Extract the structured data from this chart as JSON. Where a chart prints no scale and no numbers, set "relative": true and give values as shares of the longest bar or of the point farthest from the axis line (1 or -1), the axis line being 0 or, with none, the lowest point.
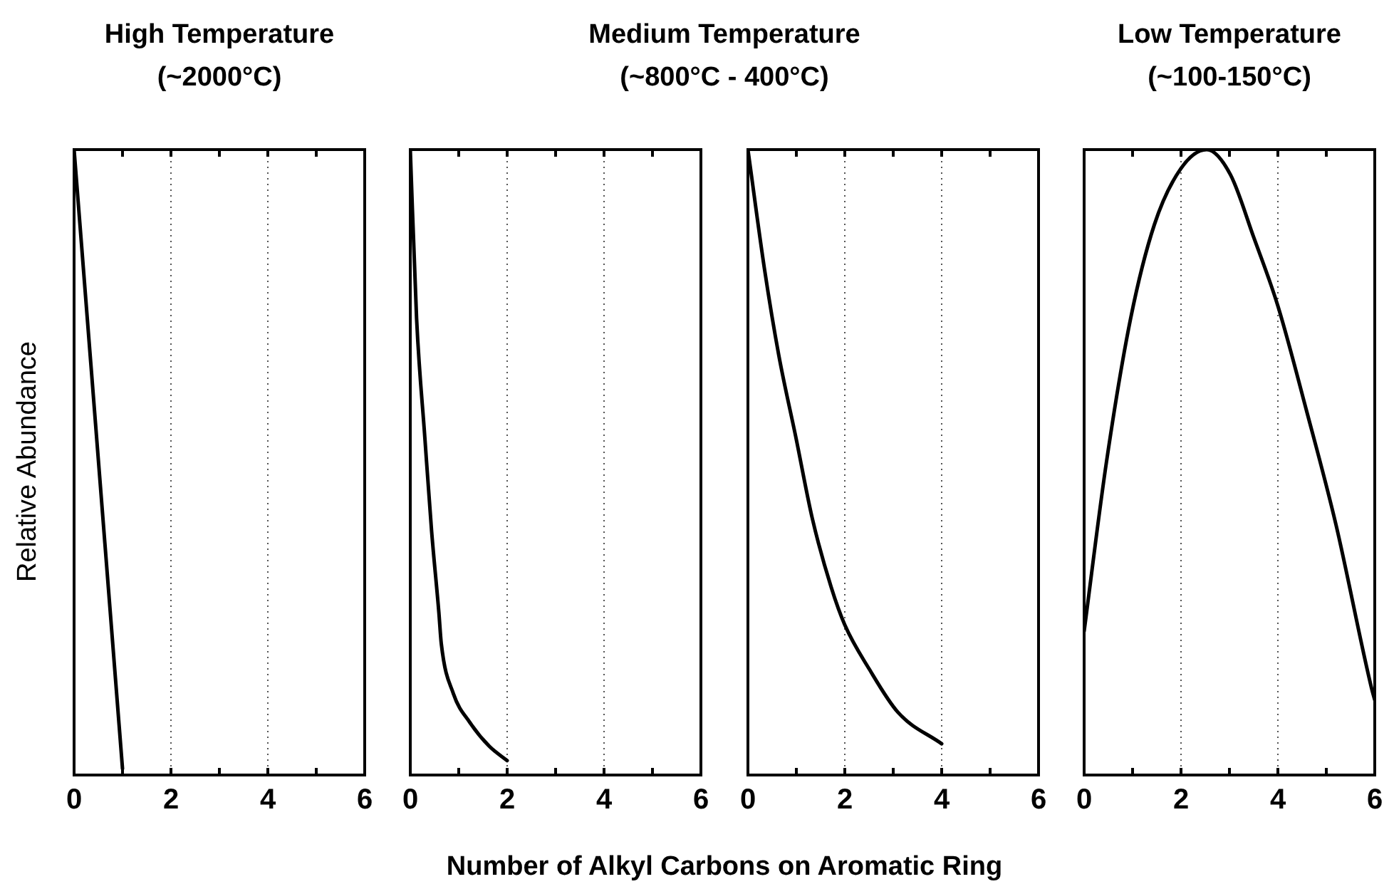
{
  "chart_data": [
    {
      "type": "line",
      "title": "High Temperature",
      "subtitle": "(~2000°C)",
      "ylabel": "Relative Abundance",
      "relative": true,
      "xlim": [
        0,
        6
      ],
      "xticks": [
        0,
        {
          "value": 1,
          "label": null
        },
        2,
        {
          "value": 3,
          "label": null
        },
        4,
        {
          "value": 5,
          "label": null
        },
        6
      ],
      "grid": "x",
      "legend": false,
      "marker": "none",
      "line_style": "solid",
      "series": [
        {
          "color": "#000000",
          "x": [
            0,
            1
          ],
          "values": [
            1,
            0.01
          ]
        }
      ]
    },
    {
      "type": "line",
      "title": "Medium Temperature",
      "subtitle": "(~800°C - 400°C)",
      "xlabel": "Number of Alkyl Carbons on Aromatic Ring",
      "relative": true,
      "xlim": [
        0,
        6
      ],
      "xticks": [
        0,
        {
          "value": 1,
          "label": null
        },
        2,
        {
          "value": 3,
          "label": null
        },
        4,
        {
          "value": 5,
          "label": null
        },
        6
      ],
      "grid": "x",
      "legend": false,
      "marker": "none",
      "line_style": "solid",
      "series": [
        {
          "color": "#000000",
          "x": [
            0,
            0.13,
            0.3,
            0.44,
            0.59,
            0.64,
            0.89,
            1.23,
            1.63,
            2
          ],
          "values": [
            1,
            0.73,
            0.54,
            0.39,
            0.26,
            0.21,
            0.13,
            0.084,
            0.046,
            0.023
          ]
        }
      ]
    },
    {
      "type": "line",
      "relative": true,
      "xlim": [
        0,
        6
      ],
      "xticks": [
        0,
        {
          "value": 1,
          "label": null
        },
        2,
        {
          "value": 3,
          "label": null
        },
        4,
        {
          "value": 5,
          "label": null
        },
        6
      ],
      "grid": "x",
      "legend": false,
      "marker": "none",
      "line_style": "solid",
      "series": [
        {
          "color": "#000000",
          "x": [
            0,
            0.34,
            0.64,
            0.99,
            1.33,
            1.72,
            2,
            2.5,
            3.1,
            4
          ],
          "values": [
            1,
            0.81,
            0.67,
            0.54,
            0.41,
            0.3,
            0.24,
            0.17,
            0.1,
            0.05
          ]
        }
      ]
    },
    {
      "type": "line",
      "title": "Low Temperature",
      "subtitle": "(~100-150°C)",
      "relative": true,
      "xlim": [
        0,
        6
      ],
      "xticks": [
        0,
        {
          "value": 1,
          "label": null
        },
        2,
        {
          "value": 3,
          "label": null
        },
        4,
        {
          "value": 5,
          "label": null
        },
        6
      ],
      "grid": "x",
      "legend": false,
      "marker": "none",
      "line_style": "solid",
      "series": [
        {
          "color": "#000000",
          "x": [
            0,
            0.46,
            0.96,
            1.45,
            2,
            2.53,
            3.02,
            3.5,
            4,
            4.6,
            5.2,
            5.93,
            6
          ],
          "values": [
            0.23,
            0.5,
            0.73,
            0.88,
            0.97,
            1,
            0.96,
            0.86,
            0.75,
            0.58,
            0.4,
            0.14,
            0.12
          ]
        }
      ]
    }
  ]
}
